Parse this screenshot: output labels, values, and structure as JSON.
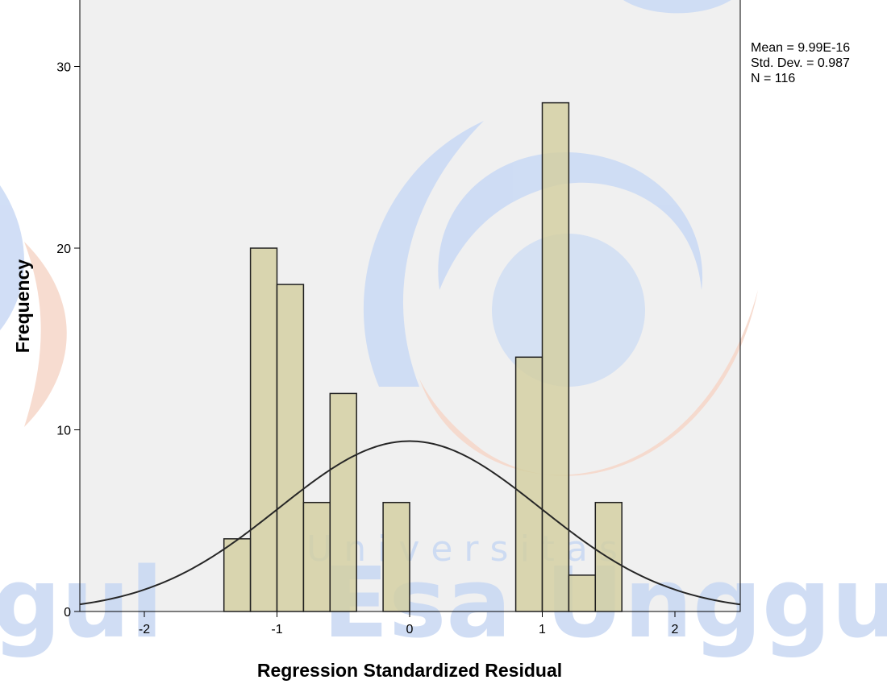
{
  "chart_data": {
    "type": "histogram",
    "xlabel": "Regression Standardized Residual",
    "ylabel": "Frequency",
    "xlim": [
      -2.5,
      2.5
    ],
    "ylim": [
      0,
      33
    ],
    "xticks": [
      -2,
      -1,
      0,
      1,
      2
    ],
    "yticks": [
      0,
      10,
      20,
      30
    ],
    "bin_width": 0.2,
    "bins": [
      {
        "start": -1.4,
        "end": -1.2,
        "count": 4
      },
      {
        "start": -1.2,
        "end": -1.0,
        "count": 20
      },
      {
        "start": -1.0,
        "end": -0.8,
        "count": 18
      },
      {
        "start": -0.8,
        "end": -0.6,
        "count": 6
      },
      {
        "start": -0.6,
        "end": -0.4,
        "count": 12
      },
      {
        "start": -0.2,
        "end": 0.0,
        "count": 6
      },
      {
        "start": 0.8,
        "end": 1.0,
        "count": 14
      },
      {
        "start": 1.0,
        "end": 1.2,
        "count": 28
      },
      {
        "start": 1.2,
        "end": 1.4,
        "count": 2
      },
      {
        "start": 1.4,
        "end": 1.6,
        "count": 6
      }
    ],
    "normal_curve": {
      "mean": 9.99e-16,
      "std_dev": 0.987,
      "n": 116
    },
    "stats": [
      "Mean = 9.99E-16",
      "Std. Dev. = 0.987",
      "N = 116"
    ],
    "colors": {
      "plot_bg": "#f0f0f0",
      "bar_fill": "#d3cea0",
      "bar_stroke": "#1f1f1f",
      "curve": "#262626"
    }
  },
  "watermark": {
    "text": "Esa Unggul",
    "left_fragment": "gul",
    "subtext": "Universitas",
    "text_color": "#c8d8f3",
    "logo_blue": "#c9d9f5",
    "logo_orange": "#f6d6c8"
  }
}
